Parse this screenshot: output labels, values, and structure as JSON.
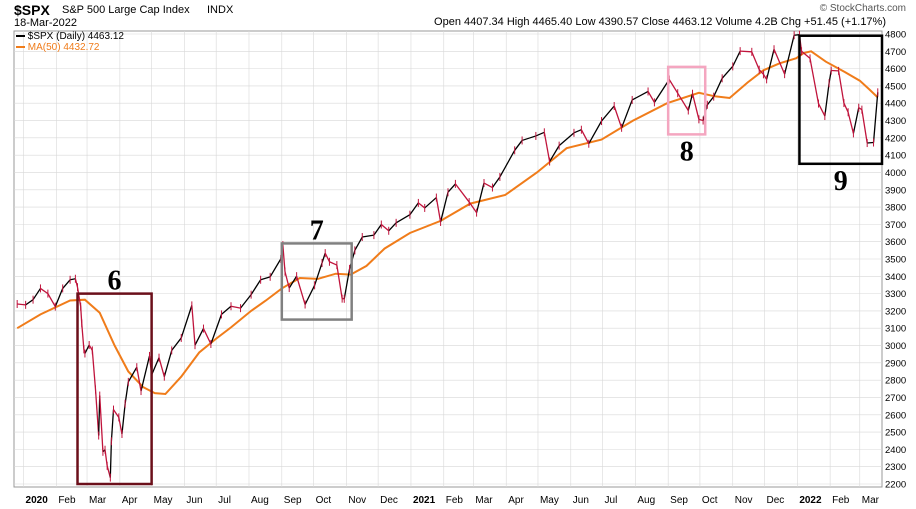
{
  "header": {
    "symbol": "$SPX",
    "name": "S&P 500 Large Cap Index",
    "exchange": "INDX",
    "date": "18-Mar-2022",
    "watermark": "© StockCharts.com",
    "ohlc": "Open 4407.34  High 4465.40  Low 4390.57  Close 4463.12  Volume 4.2B  Chg +51.45 (+1.17%)"
  },
  "legend": {
    "price_label": "$SPX (Daily) 4463.12",
    "ma_label": "MA(50) 4432.72"
  },
  "colors": {
    "price_up": "#000000",
    "price_down": "#c0143c",
    "ma": "#f07c1a",
    "grid": "#d8d8d8",
    "box6": "#6b0f1a",
    "box7": "#808080",
    "box8": "#f4a6c0",
    "box9": "#000000"
  },
  "chart_data": {
    "type": "line",
    "ylim": [
      2200,
      4800
    ],
    "y_ticks": [
      2200,
      2300,
      2400,
      2500,
      2600,
      2700,
      2800,
      2900,
      3000,
      3100,
      3200,
      3300,
      3400,
      3500,
      3600,
      3700,
      3800,
      3900,
      4000,
      4100,
      4200,
      4300,
      4400,
      4500,
      4600,
      4700,
      4800
    ],
    "x_tick_labels": [
      {
        "date": "2020-01-01",
        "label": "2020"
      },
      {
        "date": "2020-02-01",
        "label": "Feb"
      },
      {
        "date": "2020-03-01",
        "label": "Mar"
      },
      {
        "date": "2020-04-01",
        "label": "Apr"
      },
      {
        "date": "2020-05-01",
        "label": "May"
      },
      {
        "date": "2020-06-01",
        "label": "Jun"
      },
      {
        "date": "2020-07-01",
        "label": "Jul"
      },
      {
        "date": "2020-08-01",
        "label": "Aug"
      },
      {
        "date": "2020-09-01",
        "label": "Sep"
      },
      {
        "date": "2020-10-01",
        "label": "Oct"
      },
      {
        "date": "2020-11-01",
        "label": "Nov"
      },
      {
        "date": "2020-12-01",
        "label": "Dec"
      },
      {
        "date": "2021-01-01",
        "label": "2021"
      },
      {
        "date": "2021-02-01",
        "label": "Feb"
      },
      {
        "date": "2021-03-01",
        "label": "Mar"
      },
      {
        "date": "2021-04-01",
        "label": "Apr"
      },
      {
        "date": "2021-05-01",
        "label": "May"
      },
      {
        "date": "2021-06-01",
        "label": "Jun"
      },
      {
        "date": "2021-07-01",
        "label": "Jul"
      },
      {
        "date": "2021-08-01",
        "label": "Aug"
      },
      {
        "date": "2021-09-01",
        "label": "Sep"
      },
      {
        "date": "2021-10-01",
        "label": "Oct"
      },
      {
        "date": "2021-11-01",
        "label": "Nov"
      },
      {
        "date": "2021-12-01",
        "label": "Dec"
      },
      {
        "date": "2022-01-01",
        "label": "2022"
      },
      {
        "date": "2022-02-01",
        "label": "Feb"
      },
      {
        "date": "2022-03-01",
        "label": "Mar"
      }
    ],
    "x_range": [
      "2019-12-23",
      "2022-03-22"
    ],
    "series": [
      {
        "name": "$SPX (Daily)",
        "points": [
          [
            "2019-12-26",
            3240
          ],
          [
            "2020-01-03",
            3235
          ],
          [
            "2020-01-10",
            3265
          ],
          [
            "2020-01-17",
            3330
          ],
          [
            "2020-01-24",
            3300
          ],
          [
            "2020-01-31",
            3225
          ],
          [
            "2020-02-07",
            3330
          ],
          [
            "2020-02-14",
            3380
          ],
          [
            "2020-02-19",
            3386
          ],
          [
            "2020-02-21",
            3337
          ],
          [
            "2020-02-24",
            3225
          ],
          [
            "2020-02-25",
            3128
          ],
          [
            "2020-02-27",
            2978
          ],
          [
            "2020-02-28",
            2954
          ],
          [
            "2020-03-03",
            3003
          ],
          [
            "2020-03-06",
            2972
          ],
          [
            "2020-03-09",
            2746
          ],
          [
            "2020-03-12",
            2480
          ],
          [
            "2020-03-13",
            2711
          ],
          [
            "2020-03-16",
            2386
          ],
          [
            "2020-03-18",
            2398
          ],
          [
            "2020-03-20",
            2305
          ],
          [
            "2020-03-23",
            2237
          ],
          [
            "2020-03-24",
            2447
          ],
          [
            "2020-03-26",
            2630
          ],
          [
            "2020-03-31",
            2585
          ],
          [
            "2020-04-03",
            2489
          ],
          [
            "2020-04-06",
            2664
          ],
          [
            "2020-04-09",
            2790
          ],
          [
            "2020-04-17",
            2875
          ],
          [
            "2020-04-21",
            2737
          ],
          [
            "2020-04-29",
            2940
          ],
          [
            "2020-05-01",
            2830
          ],
          [
            "2020-05-08",
            2930
          ],
          [
            "2020-05-13",
            2820
          ],
          [
            "2020-05-20",
            2972
          ],
          [
            "2020-05-29",
            3044
          ],
          [
            "2020-06-08",
            3232
          ],
          [
            "2020-06-11",
            3002
          ],
          [
            "2020-06-19",
            3098
          ],
          [
            "2020-06-26",
            3009
          ],
          [
            "2020-07-06",
            3180
          ],
          [
            "2020-07-15",
            3227
          ],
          [
            "2020-07-24",
            3216
          ],
          [
            "2020-08-03",
            3294
          ],
          [
            "2020-08-12",
            3380
          ],
          [
            "2020-08-21",
            3397
          ],
          [
            "2020-08-31",
            3500
          ],
          [
            "2020-09-02",
            3580
          ],
          [
            "2020-09-04",
            3427
          ],
          [
            "2020-09-08",
            3332
          ],
          [
            "2020-09-15",
            3401
          ],
          [
            "2020-09-23",
            3237
          ],
          [
            "2020-10-02",
            3348
          ],
          [
            "2020-10-09",
            3477
          ],
          [
            "2020-10-12",
            3534
          ],
          [
            "2020-10-16",
            3484
          ],
          [
            "2020-10-23",
            3465
          ],
          [
            "2020-10-28",
            3271
          ],
          [
            "2020-10-30",
            3270
          ],
          [
            "2020-11-04",
            3443
          ],
          [
            "2020-11-09",
            3550
          ],
          [
            "2020-11-16",
            3627
          ],
          [
            "2020-11-27",
            3638
          ],
          [
            "2020-12-04",
            3699
          ],
          [
            "2020-12-11",
            3663
          ],
          [
            "2020-12-18",
            3709
          ],
          [
            "2020-12-31",
            3756
          ],
          [
            "2021-01-08",
            3824
          ],
          [
            "2021-01-14",
            3795
          ],
          [
            "2021-01-25",
            3855
          ],
          [
            "2021-01-29",
            3714
          ],
          [
            "2021-02-05",
            3886
          ],
          [
            "2021-02-12",
            3934
          ],
          [
            "2021-02-25",
            3829
          ],
          [
            "2021-03-04",
            3768
          ],
          [
            "2021-03-11",
            3939
          ],
          [
            "2021-03-19",
            3913
          ],
          [
            "2021-03-26",
            3974
          ],
          [
            "2021-04-09",
            4128
          ],
          [
            "2021-04-16",
            4185
          ],
          [
            "2021-04-29",
            4211
          ],
          [
            "2021-05-07",
            4232
          ],
          [
            "2021-05-12",
            4063
          ],
          [
            "2021-05-21",
            4155
          ],
          [
            "2021-06-04",
            4229
          ],
          [
            "2021-06-11",
            4247
          ],
          [
            "2021-06-18",
            4166
          ],
          [
            "2021-06-30",
            4297
          ],
          [
            "2021-07-12",
            4384
          ],
          [
            "2021-07-19",
            4258
          ],
          [
            "2021-07-29",
            4419
          ],
          [
            "2021-08-13",
            4468
          ],
          [
            "2021-08-19",
            4405
          ],
          [
            "2021-09-02",
            4537
          ],
          [
            "2021-09-10",
            4458
          ],
          [
            "2021-09-20",
            4358
          ],
          [
            "2021-09-24",
            4455
          ],
          [
            "2021-09-30",
            4307
          ],
          [
            "2021-10-04",
            4300
          ],
          [
            "2021-10-08",
            4391
          ],
          [
            "2021-10-14",
            4438
          ],
          [
            "2021-10-22",
            4544
          ],
          [
            "2021-11-01",
            4613
          ],
          [
            "2021-11-08",
            4701
          ],
          [
            "2021-11-19",
            4697
          ],
          [
            "2021-11-26",
            4594
          ],
          [
            "2021-11-30",
            4567
          ],
          [
            "2021-12-03",
            4538
          ],
          [
            "2021-12-10",
            4712
          ],
          [
            "2021-12-20",
            4568
          ],
          [
            "2021-12-29",
            4793
          ],
          [
            "2022-01-03",
            4796
          ],
          [
            "2022-01-05",
            4700
          ],
          [
            "2022-01-13",
            4659
          ],
          [
            "2022-01-21",
            4398
          ],
          [
            "2022-01-27",
            4326
          ],
          [
            "2022-01-31",
            4516
          ],
          [
            "2022-02-02",
            4589
          ],
          [
            "2022-02-09",
            4587
          ],
          [
            "2022-02-14",
            4401
          ],
          [
            "2022-02-18",
            4348
          ],
          [
            "2022-02-23",
            4226
          ],
          [
            "2022-02-28",
            4374
          ],
          [
            "2022-03-03",
            4363
          ],
          [
            "2022-03-08",
            4170
          ],
          [
            "2022-03-14",
            4173
          ],
          [
            "2022-03-18",
            4463
          ]
        ]
      },
      {
        "name": "MA(50)",
        "points": [
          [
            "2019-12-26",
            3100
          ],
          [
            "2020-01-17",
            3180
          ],
          [
            "2020-02-14",
            3260
          ],
          [
            "2020-02-28",
            3265
          ],
          [
            "2020-03-13",
            3190
          ],
          [
            "2020-03-27",
            3000
          ],
          [
            "2020-04-09",
            2850
          ],
          [
            "2020-04-23",
            2760
          ],
          [
            "2020-05-04",
            2725
          ],
          [
            "2020-05-14",
            2720
          ],
          [
            "2020-05-29",
            2820
          ],
          [
            "2020-06-15",
            2960
          ],
          [
            "2020-07-01",
            3040
          ],
          [
            "2020-07-15",
            3105
          ],
          [
            "2020-08-03",
            3200
          ],
          [
            "2020-08-17",
            3260
          ],
          [
            "2020-09-01",
            3330
          ],
          [
            "2020-09-18",
            3390
          ],
          [
            "2020-10-05",
            3385
          ],
          [
            "2020-10-22",
            3415
          ],
          [
            "2020-11-05",
            3410
          ],
          [
            "2020-11-20",
            3460
          ],
          [
            "2020-12-07",
            3560
          ],
          [
            "2020-12-31",
            3650
          ],
          [
            "2021-01-29",
            3720
          ],
          [
            "2021-02-26",
            3820
          ],
          [
            "2021-03-31",
            3870
          ],
          [
            "2021-04-30",
            4000
          ],
          [
            "2021-05-28",
            4140
          ],
          [
            "2021-06-30",
            4190
          ],
          [
            "2021-07-30",
            4300
          ],
          [
            "2021-08-31",
            4400
          ],
          [
            "2021-09-30",
            4460
          ],
          [
            "2021-10-15",
            4440
          ],
          [
            "2021-10-29",
            4430
          ],
          [
            "2021-11-15",
            4520
          ],
          [
            "2021-11-30",
            4590
          ],
          [
            "2021-12-15",
            4630
          ],
          [
            "2021-12-31",
            4660
          ],
          [
            "2022-01-07",
            4690
          ],
          [
            "2022-01-14",
            4700
          ],
          [
            "2022-01-28",
            4640
          ],
          [
            "2022-02-15",
            4580
          ],
          [
            "2022-03-01",
            4530
          ],
          [
            "2022-03-10",
            4480
          ],
          [
            "2022-03-18",
            4433
          ]
        ]
      }
    ],
    "annotations": [
      {
        "label": "6",
        "start": "2020-02-21",
        "end": "2020-05-01",
        "low": 2200,
        "high": 3300
      },
      {
        "label": "7",
        "start": "2020-09-01",
        "end": "2020-11-06",
        "low": 3150,
        "high": 3590
      },
      {
        "label": "8",
        "start": "2021-09-01",
        "end": "2021-10-06",
        "low": 4220,
        "high": 4610
      },
      {
        "label": "9",
        "start": "2022-01-03",
        "end": "2022-03-22",
        "low": 4050,
        "high": 4790
      }
    ]
  }
}
